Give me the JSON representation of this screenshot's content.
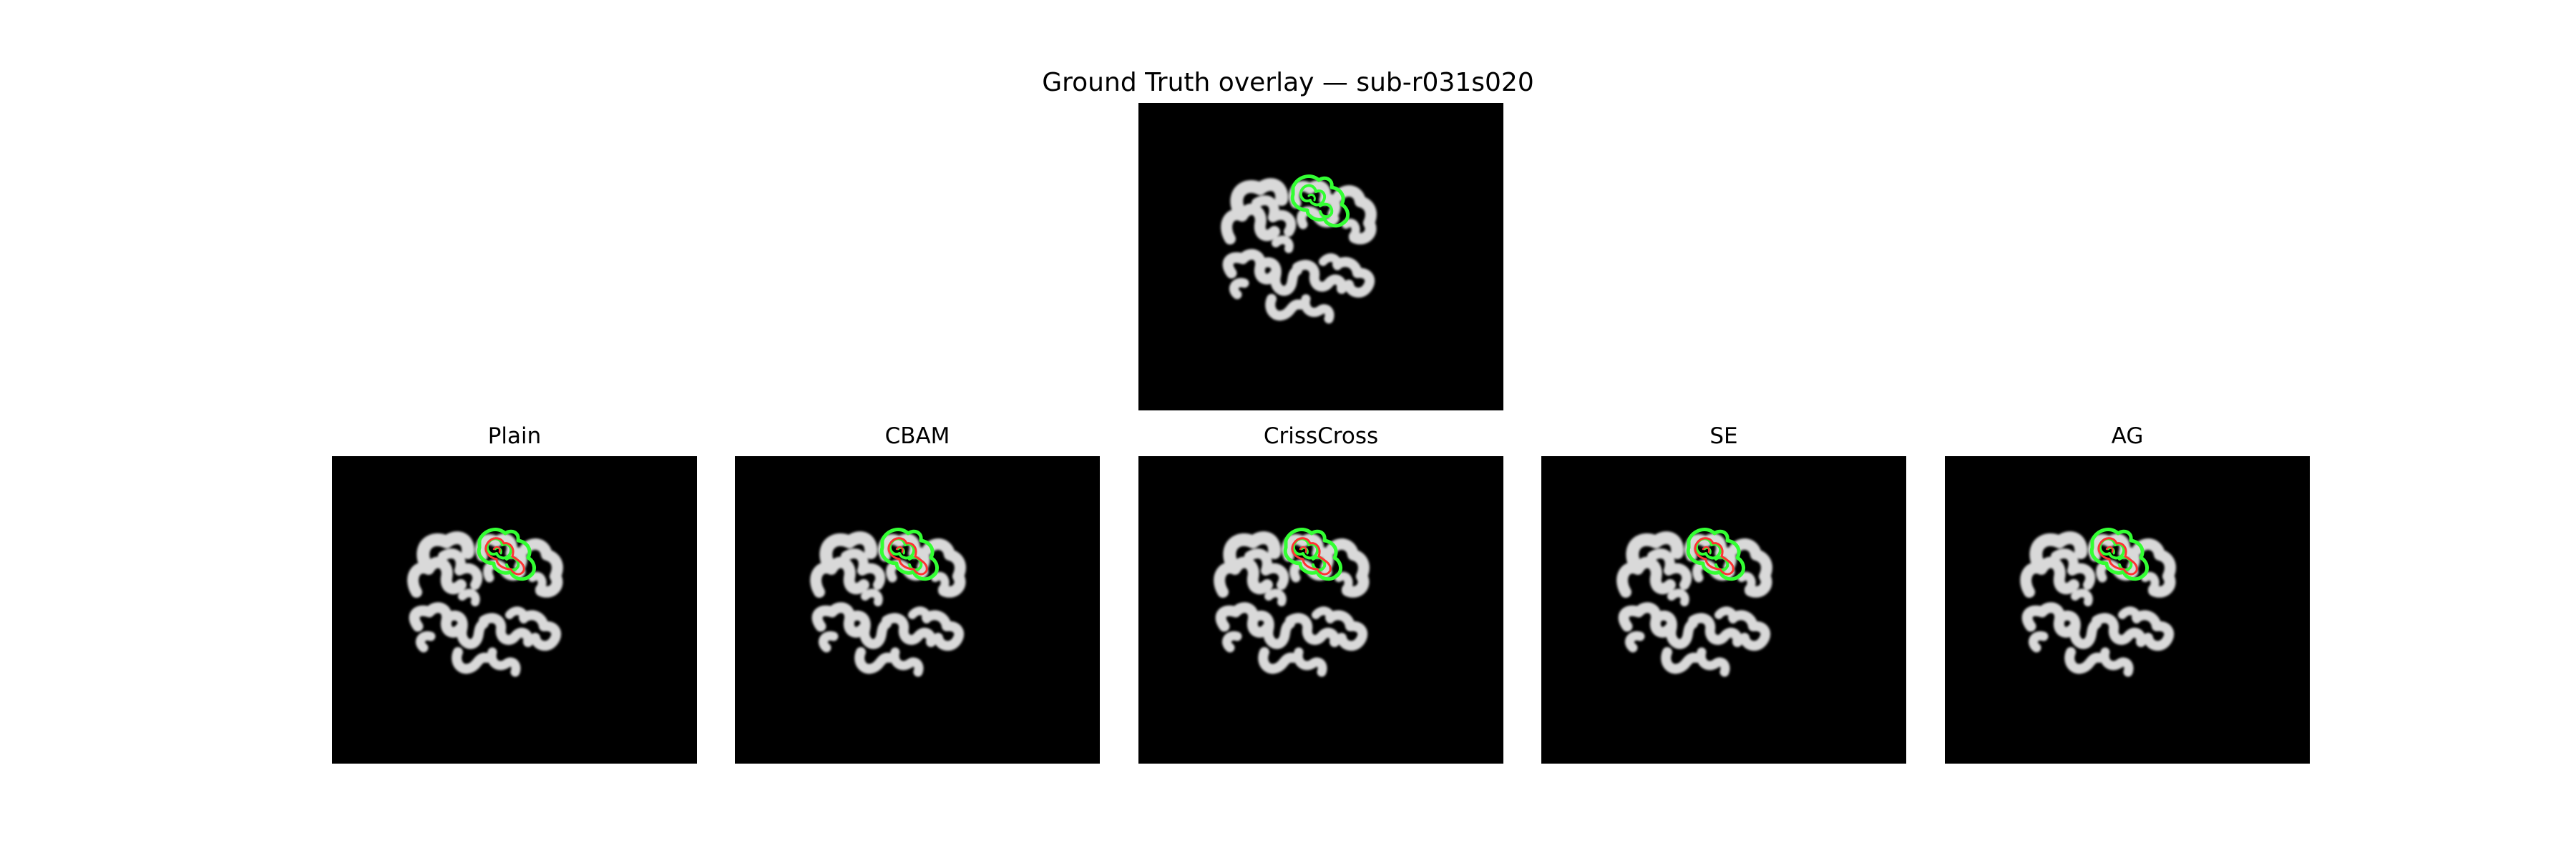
{
  "figure": {
    "title": "Ground Truth overlay — sub-r031s020"
  },
  "panels": [
    {
      "key": "gt",
      "title": ""
    },
    {
      "key": "plain",
      "title": "Plain"
    },
    {
      "key": "cbam",
      "title": "CBAM"
    },
    {
      "key": "crisscross",
      "title": "CrissCross"
    },
    {
      "key": "se",
      "title": "SE"
    },
    {
      "key": "ag",
      "title": "AG"
    }
  ],
  "colors": {
    "background": "#000000",
    "brain_tissue": "#d9d9d9",
    "ground_truth_contour": "#33ff33",
    "prediction_contour": "#ff3333"
  }
}
